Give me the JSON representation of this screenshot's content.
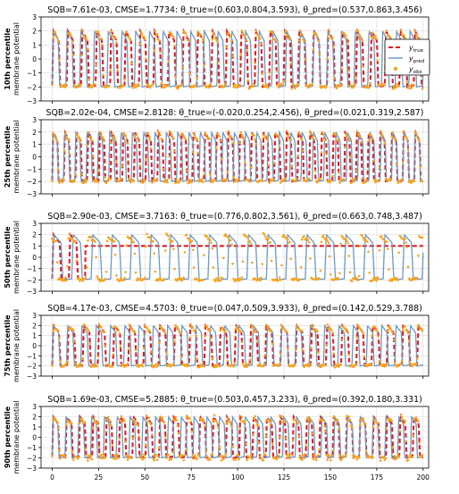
{
  "figure": {
    "legend": {
      "entries": [
        {
          "name": "true",
          "label": "y",
          "sub": "true"
        },
        {
          "name": "pred",
          "label": "y",
          "sub": "pred"
        },
        {
          "name": "obs",
          "label": "y",
          "sub": "obs"
        }
      ]
    },
    "colors": {
      "true": "#e41a1c",
      "pred": "#6a9ac4",
      "obs": "#f5a623"
    }
  },
  "chart_data": [
    {
      "type": "line",
      "title": "SQB=7.61e-03, CMSE=1.7734: θ_true=(0.603,0.804,3.593), θ_pred=(0.537,0.863,3.456)",
      "row_label": "10th percentile",
      "ylabel": "membrane potential",
      "xlabel": "",
      "xlim": [
        -6,
        203
      ],
      "ylim": [
        -3,
        3
      ],
      "xticks": [
        0,
        25,
        50,
        75,
        100,
        125,
        150,
        175,
        200
      ],
      "yticks": [
        -3,
        -2,
        -1,
        0,
        1,
        2,
        3
      ],
      "grid": true,
      "show_legend": true,
      "legend_position": "top-right",
      "x": [
        0,
        200
      ],
      "series": [
        {
          "name": "true",
          "style": "dashed",
          "period": 7.8,
          "phase": 0,
          "count": 26
        },
        {
          "name": "pred",
          "style": "solid",
          "period": 7.4,
          "phase": 0,
          "count": 27
        },
        {
          "name": "obs",
          "style": "markers",
          "period": 7.8,
          "phase": 0,
          "noise": 0.15
        }
      ]
    },
    {
      "type": "line",
      "title": "SQB=2.02e-04, CMSE=2.8128: θ_true=(-0.020,0.254,2.456), θ_pred=(0.021,0.319,2.587)",
      "row_label": "25th percentile",
      "ylabel": "membrane potential",
      "xlabel": "",
      "xlim": [
        -6,
        203
      ],
      "ylim": [
        -3,
        3
      ],
      "xticks": [
        0,
        25,
        50,
        75,
        100,
        125,
        150,
        175,
        200
      ],
      "yticks": [
        -3,
        -2,
        -1,
        0,
        1,
        2,
        3
      ],
      "grid": true,
      "show_legend": false,
      "x": [
        0,
        200
      ],
      "series": [
        {
          "name": "true",
          "style": "dashed",
          "period": 6.3,
          "phase": 0,
          "count": 32
        },
        {
          "name": "pred",
          "style": "solid",
          "period": 6.1,
          "phase": 0,
          "count": 33
        },
        {
          "name": "obs",
          "style": "markers",
          "period": 6.3,
          "phase": 0,
          "noise": 0.15
        }
      ]
    },
    {
      "type": "line",
      "title": "SQB=2.90e-03, CMSE=3.7163: θ_true=(0.776,0.802,3.561), θ_pred=(0.663,0.748,3.487)",
      "row_label": "50th percentile",
      "ylabel": "membrane potential",
      "xlabel": "",
      "xlim": [
        -6,
        203
      ],
      "ylim": [
        -3,
        3
      ],
      "xticks": [
        0,
        25,
        50,
        75,
        100,
        125,
        150,
        175,
        200
      ],
      "yticks": [
        -3,
        -2,
        -1,
        0,
        1,
        2,
        3
      ],
      "grid": true,
      "show_legend": false,
      "x": [
        0,
        200
      ],
      "series": [
        {
          "name": "true",
          "style": "dashed",
          "period": 9.0,
          "phase": 0,
          "count": 2,
          "settle": 1.0
        },
        {
          "name": "pred",
          "style": "solid",
          "period": 10.5,
          "phase": 0,
          "count": 19
        },
        {
          "name": "obs",
          "style": "markers",
          "period": 10.5,
          "phase": 2.5,
          "noise": 0.15
        }
      ]
    },
    {
      "type": "line",
      "title": "SQB=4.17e-03, CMSE=4.5703: θ_true=(0.047,0.509,3.933), θ_pred=(0.142,0.529,3.788)",
      "row_label": "75th percentile",
      "ylabel": "membrane potential",
      "xlabel": "",
      "xlim": [
        -6,
        203
      ],
      "ylim": [
        -3,
        3
      ],
      "xticks": [
        0,
        25,
        50,
        75,
        100,
        125,
        150,
        175,
        200
      ],
      "yticks": [
        -3,
        -2,
        -1,
        0,
        1,
        2,
        3
      ],
      "grid": true,
      "show_legend": false,
      "x": [
        0,
        200
      ],
      "series": [
        {
          "name": "true",
          "style": "dashed",
          "period": 8.2,
          "phase": 0,
          "count": 25
        },
        {
          "name": "pred",
          "style": "solid",
          "period": 7.7,
          "phase": 0,
          "count": 26
        },
        {
          "name": "obs",
          "style": "markers",
          "period": 8.2,
          "phase": 0,
          "noise": 0.15
        }
      ]
    },
    {
      "type": "line",
      "title": "SQB=1.69e-03, CMSE=5.2885: θ_true=(0.503,0.457,3.233), θ_pred=(0.392,0.180,3.331)",
      "row_label": "90th percentile",
      "ylabel": "membrane potential",
      "xlabel": "",
      "xlim": [
        -6,
        203
      ],
      "ylim": [
        -3,
        3
      ],
      "xticks": [
        0,
        25,
        50,
        75,
        100,
        125,
        150,
        175,
        200
      ],
      "yticks": [
        -3,
        -2,
        -1,
        0,
        1,
        2,
        3
      ],
      "show_xtick_labels": true,
      "grid": true,
      "show_legend": false,
      "x": [
        0,
        200
      ],
      "series": [
        {
          "name": "true",
          "style": "dashed",
          "period": 7.2,
          "phase": 0,
          "count": 28
        },
        {
          "name": "pred",
          "style": "solid",
          "period": 6.9,
          "phase": 0,
          "count": 29
        },
        {
          "name": "obs",
          "style": "markers",
          "period": 7.2,
          "phase": 0,
          "noise": 0.3
        }
      ]
    }
  ]
}
